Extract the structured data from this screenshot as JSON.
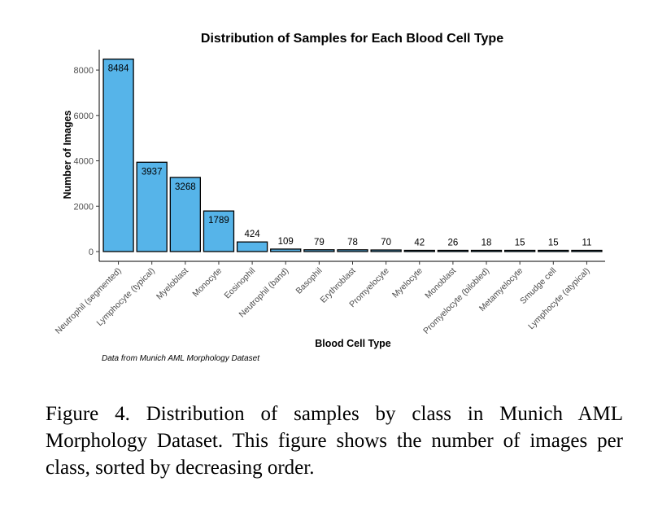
{
  "chart_data": {
    "type": "bar",
    "title": "Distribution of Samples for Each Blood Cell Type",
    "xlabel": "Blood Cell Type",
    "ylabel": "Number of Images",
    "categories": [
      "Neutrophil (segmented)",
      "Lymphocyte (typical)",
      "Myeloblast",
      "Monocyte",
      "Eosinophil",
      "Neutrophil (band)",
      "Basophil",
      "Erythroblast",
      "Promyelocyte",
      "Myelocyte",
      "Monoblast",
      "Promyelocyte (bilobled)",
      "Metamyelocyte",
      "Smudge cell",
      "Lymphocyte (atypical)"
    ],
    "values": [
      8484,
      3937,
      3268,
      1789,
      424,
      109,
      79,
      78,
      70,
      42,
      26,
      18,
      15,
      15,
      11
    ],
    "ylim": [
      0,
      8900
    ],
    "yticks": [
      0,
      2000,
      4000,
      6000,
      8000
    ],
    "bar_color": "#56B4E9",
    "grid": false,
    "legend": "none",
    "source_note": "Data from Munich AML Morphology Dataset"
  },
  "caption": "Figure 4. Distribution of samples by class in Munich AML Morphology Dataset. This figure shows the number of images per class, sorted by decreasing order."
}
